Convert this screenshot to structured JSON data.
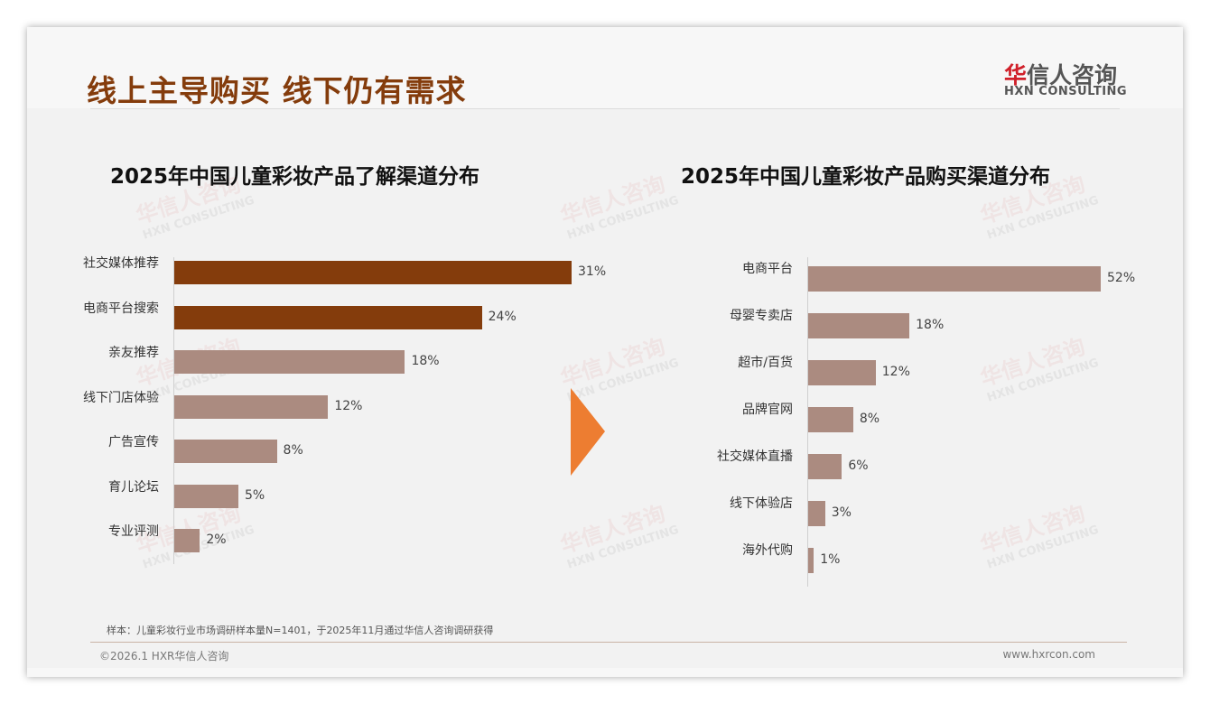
{
  "header": {
    "title": "线上主导购买 线下仍有需求",
    "logo_cn_red": "华",
    "logo_cn": "信人咨询",
    "logo_en": "HXN CONSULTING"
  },
  "watermark": {
    "cn": "华信人咨询",
    "en": "HXN CONSULTING"
  },
  "colors": {
    "dark": "#843c0c",
    "light": "#ab8b80",
    "arrow": "#ed7d31"
  },
  "chart_data": [
    {
      "type": "bar",
      "orientation": "horizontal",
      "title": "2025年中国儿童彩妆产品了解渠道分布",
      "categories": [
        "社交媒体推荐",
        "电商平台搜索",
        "亲友推荐",
        "线下门店体验",
        "广告宣传",
        "育儿论坛",
        "专业评测"
      ],
      "values": [
        31,
        24,
        18,
        12,
        8,
        5,
        2
      ],
      "labels": [
        "31%",
        "24%",
        "18%",
        "12%",
        "8%",
        "5%",
        "2%"
      ],
      "highlight": [
        true,
        true,
        false,
        false,
        false,
        false,
        false
      ],
      "unit": "%"
    },
    {
      "type": "bar",
      "orientation": "horizontal",
      "title": "2025年中国儿童彩妆产品购买渠道分布",
      "categories": [
        "电商平台",
        "母婴专卖店",
        "超市/百货",
        "品牌官网",
        "社交媒体直播",
        "线下体验店",
        "海外代购"
      ],
      "values": [
        52,
        18,
        12,
        8,
        6,
        3,
        1
      ],
      "labels": [
        "52%",
        "18%",
        "12%",
        "8%",
        "6%",
        "3%",
        "1%"
      ],
      "highlight": [
        false,
        false,
        false,
        false,
        false,
        false,
        false
      ],
      "unit": "%"
    }
  ],
  "footer": {
    "note": "样本：儿童彩妆行业市场调研样本量N=1401，于2025年11月通过华信人咨询调研获得",
    "copyright": "©2026.1 HXR华信人咨询",
    "url": "www.hxrcon.com"
  }
}
